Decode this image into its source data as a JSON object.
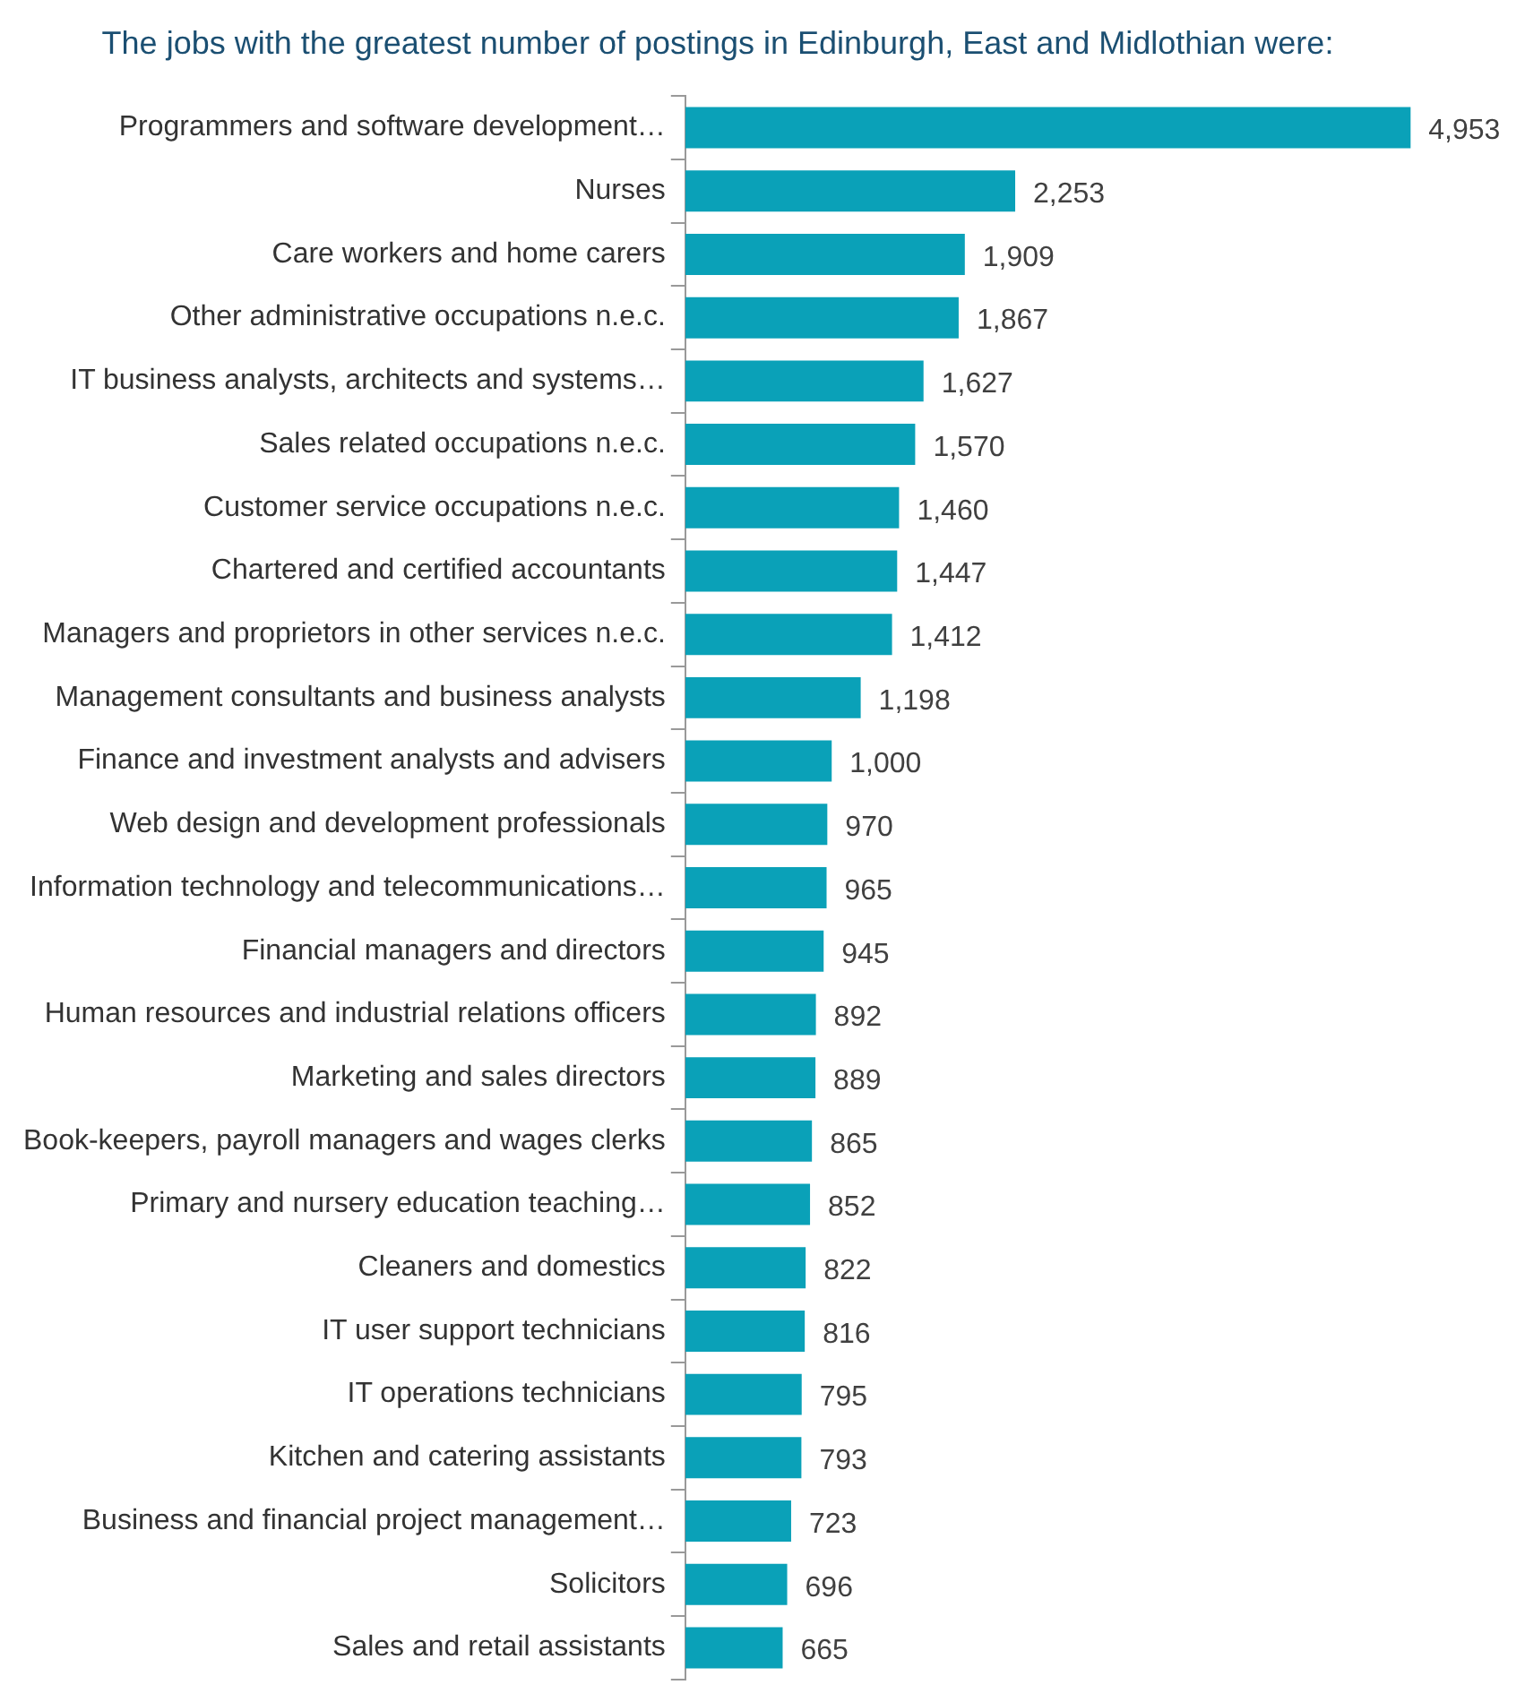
{
  "chart_data": {
    "type": "bar",
    "orientation": "horizontal",
    "title": "The jobs with the greatest number of postings in Edinburgh, East and Midlothian were:",
    "categories": [
      "Programmers and software development…",
      "Nurses",
      "Care workers and home carers",
      "Other administrative occupations n.e.c.",
      "IT business analysts, architects and systems…",
      "Sales related occupations n.e.c.",
      "Customer service occupations n.e.c.",
      "Chartered and certified accountants",
      "Managers and proprietors in other services n.e.c.",
      "Management consultants and business analysts",
      "Finance and investment analysts and advisers",
      "Web design and development professionals",
      "Information technology and telecommunications…",
      "Financial managers and directors",
      "Human resources and industrial relations officers",
      "Marketing and sales directors",
      "Book-keepers, payroll managers and wages clerks",
      "Primary and nursery education teaching…",
      "Cleaners and domestics",
      "IT user support technicians",
      "IT operations technicians",
      "Kitchen and catering assistants",
      "Business and financial project management…",
      "Solicitors",
      "Sales and retail assistants"
    ],
    "values": [
      4953,
      2253,
      1909,
      1867,
      1627,
      1570,
      1460,
      1447,
      1412,
      1198,
      1000,
      970,
      965,
      945,
      892,
      889,
      865,
      852,
      822,
      816,
      795,
      793,
      723,
      696,
      665
    ],
    "value_labels": [
      "4,953",
      "2,253",
      "1,909",
      "1,867",
      "1,627",
      "1,570",
      "1,460",
      "1,447",
      "1,412",
      "1,198",
      "1,000",
      "970",
      "965",
      "945",
      "892",
      "889",
      "865",
      "852",
      "822",
      "816",
      "795",
      "793",
      "723",
      "696",
      "665"
    ],
    "color": "#0aa1b8"
  }
}
